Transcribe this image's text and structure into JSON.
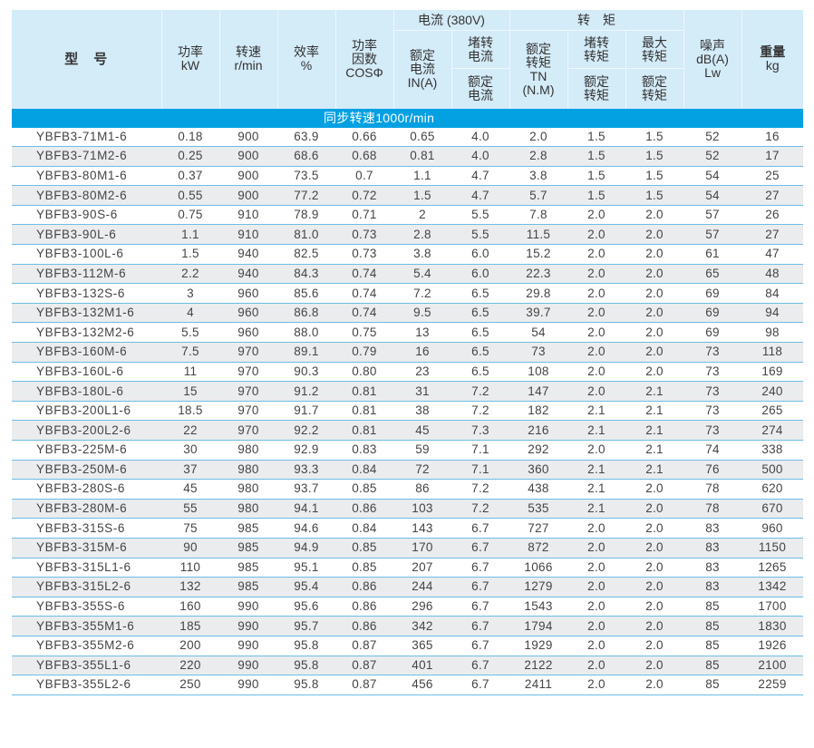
{
  "header": {
    "model": "型　号",
    "power": [
      "功率",
      "kW"
    ],
    "speed": [
      "转速",
      "r/min"
    ],
    "efficiency": [
      "效率",
      "%"
    ],
    "power_factor": [
      "功率",
      "因数",
      "COSΦ"
    ],
    "current_group": "电流 (380V)",
    "rated_current": [
      "额定",
      "电流",
      "IN(A)"
    ],
    "locked_current_top": [
      "堵转",
      "电流"
    ],
    "locked_current_bottom": [
      "额定",
      "电流"
    ],
    "torque_group": "转　矩",
    "rated_torque": [
      "额定",
      "转矩",
      "TN",
      "(N.M)"
    ],
    "locked_torque_top": [
      "堵转",
      "转矩"
    ],
    "locked_torque_bottom": [
      "额定",
      "转矩"
    ],
    "max_torque_top": [
      "最大",
      "转矩"
    ],
    "max_torque_bottom": [
      "额定",
      "转矩"
    ],
    "noise": [
      "噪声",
      "dB(A)",
      "Lw"
    ],
    "weight": [
      "重量",
      "kg"
    ]
  },
  "band": {
    "label": "同步转速1000r/min"
  },
  "colors": {
    "header_bg": "#d4ebf8",
    "band_bg": "#03a0e2",
    "row_alt_bg": "#ebecee",
    "row_line": "#6cbde6"
  },
  "rows": [
    [
      "YBFB3-71M1-6",
      "0.18",
      "900",
      "63.9",
      "0.66",
      "0.65",
      "4.0",
      "2.0",
      "1.5",
      "1.5",
      "52",
      "16"
    ],
    [
      "YBFB3-71M2-6",
      "0.25",
      "900",
      "68.6",
      "0.68",
      "0.81",
      "4.0",
      "2.8",
      "1.5",
      "1.5",
      "52",
      "17"
    ],
    [
      "YBFB3-80M1-6",
      "0.37",
      "900",
      "73.5",
      "0.7",
      "1.1",
      "4.7",
      "3.8",
      "1.5",
      "1.5",
      "54",
      "25"
    ],
    [
      "YBFB3-80M2-6",
      "0.55",
      "900",
      "77.2",
      "0.72",
      "1.5",
      "4.7",
      "5.7",
      "1.5",
      "1.5",
      "54",
      "27"
    ],
    [
      "YBFB3-90S-6",
      "0.75",
      "910",
      "78.9",
      "0.71",
      "2",
      "5.5",
      "7.8",
      "2.0",
      "2.0",
      "57",
      "26"
    ],
    [
      "YBFB3-90L-6",
      "1.1",
      "910",
      "81.0",
      "0.73",
      "2.8",
      "5.5",
      "11.5",
      "2.0",
      "2.0",
      "57",
      "27"
    ],
    [
      "YBFB3-100L-6",
      "1.5",
      "940",
      "82.5",
      "0.73",
      "3.8",
      "6.0",
      "15.2",
      "2.0",
      "2.0",
      "61",
      "47"
    ],
    [
      "YBFB3-112M-6",
      "2.2",
      "940",
      "84.3",
      "0.74",
      "5.4",
      "6.0",
      "22.3",
      "2.0",
      "2.0",
      "65",
      "48"
    ],
    [
      "YBFB3-132S-6",
      "3",
      "960",
      "85.6",
      "0.74",
      "7.2",
      "6.5",
      "29.8",
      "2.0",
      "2.0",
      "69",
      "84"
    ],
    [
      "YBFB3-132M1-6",
      "4",
      "960",
      "86.8",
      "0.74",
      "9.5",
      "6.5",
      "39.7",
      "2.0",
      "2.0",
      "69",
      "94"
    ],
    [
      "YBFB3-132M2-6",
      "5.5",
      "960",
      "88.0",
      "0.75",
      "13",
      "6.5",
      "54",
      "2.0",
      "2.0",
      "69",
      "98"
    ],
    [
      "YBFB3-160M-6",
      "7.5",
      "970",
      "89.1",
      "0.79",
      "16",
      "6.5",
      "73",
      "2.0",
      "2.0",
      "73",
      "118"
    ],
    [
      "YBFB3-160L-6",
      "11",
      "970",
      "90.3",
      "0.80",
      "23",
      "6.5",
      "108",
      "2.0",
      "2.0",
      "73",
      "169"
    ],
    [
      "YBFB3-180L-6",
      "15",
      "970",
      "91.2",
      "0.81",
      "31",
      "7.2",
      "147",
      "2.0",
      "2.1",
      "73",
      "240"
    ],
    [
      "YBFB3-200L1-6",
      "18.5",
      "970",
      "91.7",
      "0.81",
      "38",
      "7.2",
      "182",
      "2.1",
      "2.1",
      "73",
      "265"
    ],
    [
      "YBFB3-200L2-6",
      "22",
      "970",
      "92.2",
      "0.81",
      "45",
      "7.3",
      "216",
      "2.1",
      "2.1",
      "73",
      "274"
    ],
    [
      "YBFB3-225M-6",
      "30",
      "980",
      "92.9",
      "0.83",
      "59",
      "7.1",
      "292",
      "2.0",
      "2.1",
      "74",
      "338"
    ],
    [
      "YBFB3-250M-6",
      "37",
      "980",
      "93.3",
      "0.84",
      "72",
      "7.1",
      "360",
      "2.1",
      "2.1",
      "76",
      "500"
    ],
    [
      "YBFB3-280S-6",
      "45",
      "980",
      "93.7",
      "0.85",
      "86",
      "7.2",
      "438",
      "2.1",
      "2.0",
      "78",
      "620"
    ],
    [
      "YBFB3-280M-6",
      "55",
      "980",
      "94.1",
      "0.86",
      "103",
      "7.2",
      "535",
      "2.1",
      "2.0",
      "78",
      "670"
    ],
    [
      "YBFB3-315S-6",
      "75",
      "985",
      "94.6",
      "0.84",
      "143",
      "6.7",
      "727",
      "2.0",
      "2.0",
      "83",
      "960"
    ],
    [
      "YBFB3-315M-6",
      "90",
      "985",
      "94.9",
      "0.85",
      "170",
      "6.7",
      "872",
      "2.0",
      "2.0",
      "83",
      "1150"
    ],
    [
      "YBFB3-315L1-6",
      "110",
      "985",
      "95.1",
      "0.85",
      "207",
      "6.7",
      "1066",
      "2.0",
      "2.0",
      "83",
      "1265"
    ],
    [
      "YBFB3-315L2-6",
      "132",
      "985",
      "95.4",
      "0.86",
      "244",
      "6.7",
      "1279",
      "2.0",
      "2.0",
      "83",
      "1342"
    ],
    [
      "YBFB3-355S-6",
      "160",
      "990",
      "95.6",
      "0.86",
      "296",
      "6.7",
      "1543",
      "2.0",
      "2.0",
      "85",
      "1700"
    ],
    [
      "YBFB3-355M1-6",
      "185",
      "990",
      "95.7",
      "0.86",
      "342",
      "6.7",
      "1794",
      "2.0",
      "2.0",
      "85",
      "1830"
    ],
    [
      "YBFB3-355M2-6",
      "200",
      "990",
      "95.8",
      "0.87",
      "365",
      "6.7",
      "1929",
      "2.0",
      "2.0",
      "85",
      "1926"
    ],
    [
      "YBFB3-355L1-6",
      "220",
      "990",
      "95.8",
      "0.87",
      "401",
      "6.7",
      "2122",
      "2.0",
      "2.0",
      "85",
      "2100"
    ],
    [
      "YBFB3-355L2-6",
      "250",
      "990",
      "95.8",
      "0.87",
      "456",
      "6.7",
      "2411",
      "2.0",
      "2.0",
      "85",
      "2259"
    ]
  ]
}
